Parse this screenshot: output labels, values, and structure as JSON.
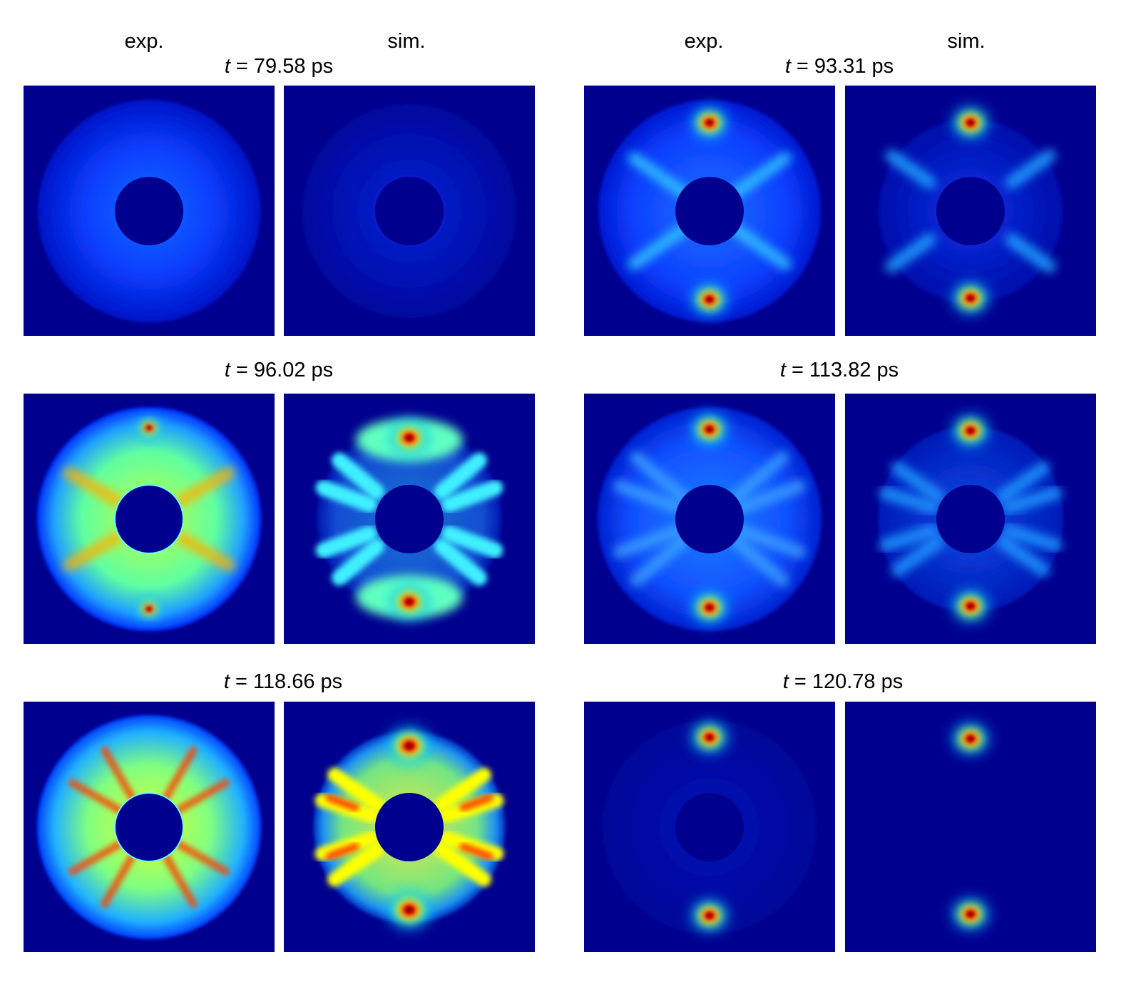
{
  "column_headers": [
    {
      "label": "exp."
    },
    {
      "label": "sim."
    },
    {
      "label": "exp."
    },
    {
      "label": "sim."
    }
  ],
  "time_labels": [
    {
      "var": "t",
      "text": " = 79.58 ps"
    },
    {
      "var": "t",
      "text": " = 93.31 ps"
    },
    {
      "var": "t",
      "text": " = 96.02 ps"
    },
    {
      "var": "t",
      "text": " = 113.82 ps"
    },
    {
      "var": "t",
      "text": " = 118.66 ps"
    },
    {
      "var": "t",
      "text": " = 120.78 ps"
    }
  ],
  "colormap": [
    "#00008f",
    "#0000ff",
    "#00ffff",
    "#ffff00",
    "#ff0000",
    "#800000"
  ]
}
